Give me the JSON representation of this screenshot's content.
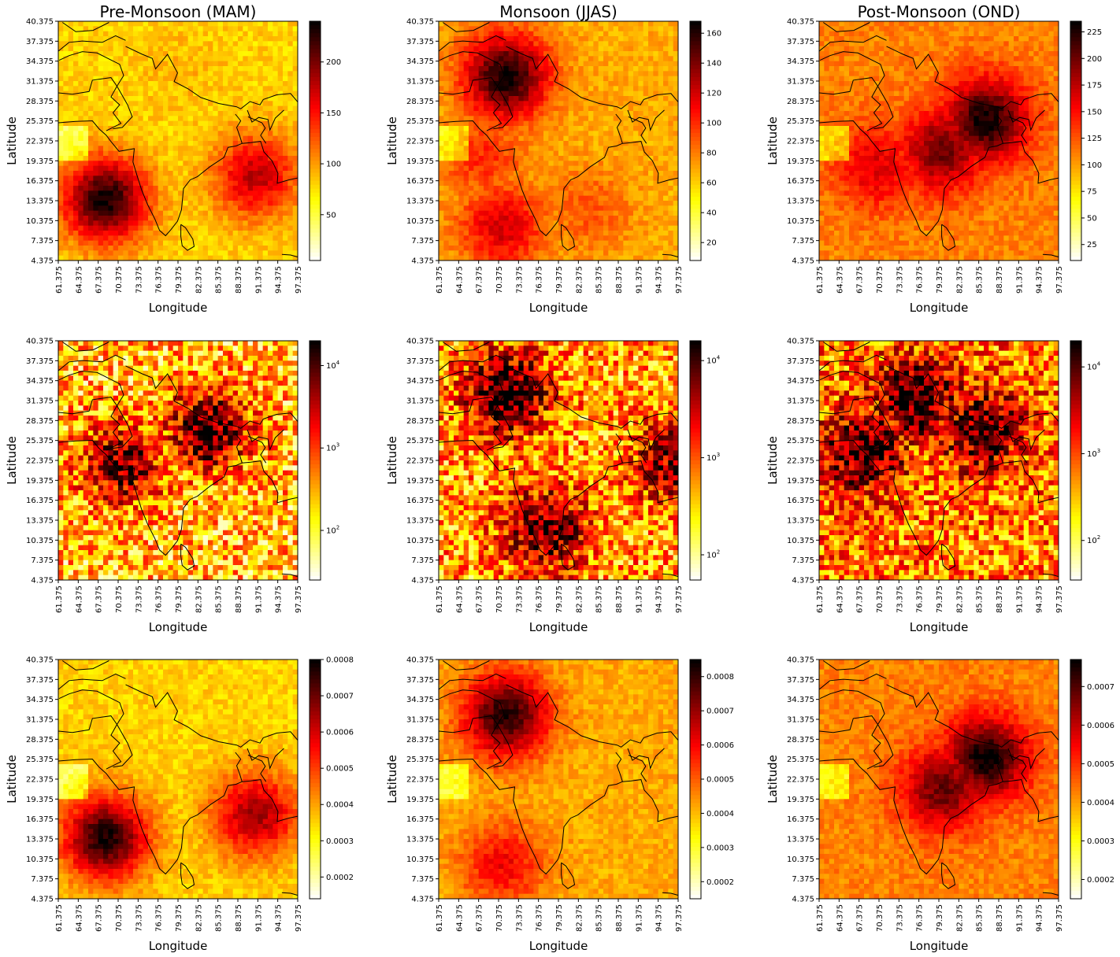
{
  "figure": {
    "column_titles": [
      "Pre-Monsoon (MAM)",
      "Monsoon (JJAS)",
      "Post-Monsoon (OND)"
    ],
    "xlabel": "Longitude",
    "ylabel": "Latitude",
    "x_ticks": [
      "61.375",
      "64.375",
      "67.375",
      "70.375",
      "73.375",
      "76.375",
      "79.375",
      "82.375",
      "85.375",
      "88.375",
      "91.375",
      "94.375",
      "97.375"
    ],
    "y_ticks": [
      "4.375",
      "7.375",
      "10.375",
      "13.375",
      "16.375",
      "19.375",
      "22.375",
      "25.375",
      "28.375",
      "31.375",
      "34.375",
      "37.375",
      "40.375"
    ]
  },
  "chart_data": [
    {
      "type": "heatmap",
      "row": 0,
      "col": 0,
      "title": "Pre-Monsoon (MAM)",
      "xlabel": "Longitude",
      "ylabel": "Latitude",
      "xlim": [
        61.375,
        97.375
      ],
      "ylim": [
        4.375,
        40.375
      ],
      "colormap": "hot_r",
      "colorbar_scale": "linear",
      "vmin": 5,
      "vmax": 240,
      "colorbar_ticks": [
        50,
        100,
        150,
        200
      ],
      "colorbar_tick_labels": [
        "50",
        "100",
        "150",
        "200"
      ],
      "hotspots": [
        {
          "lon": 68.5,
          "lat": 13.5,
          "value": 235
        },
        {
          "lon": 91.0,
          "lat": 17.0,
          "value": 175
        },
        {
          "lon": 80.0,
          "lat": 33.0,
          "value": 90
        }
      ]
    },
    {
      "type": "heatmap",
      "row": 0,
      "col": 1,
      "title": "Monsoon (JJAS)",
      "xlabel": "Longitude",
      "ylabel": "Latitude",
      "xlim": [
        61.375,
        97.375
      ],
      "ylim": [
        4.375,
        40.375
      ],
      "colormap": "hot_r",
      "colorbar_scale": "linear",
      "vmin": 8,
      "vmax": 168,
      "colorbar_ticks": [
        20,
        40,
        60,
        80,
        100,
        120,
        140,
        160
      ],
      "colorbar_tick_labels": [
        "20",
        "40",
        "60",
        "80",
        "100",
        "120",
        "140",
        "160"
      ],
      "hotspots": [
        {
          "lon": 71.5,
          "lat": 32.0,
          "value": 165
        },
        {
          "lon": 71.0,
          "lat": 9.5,
          "value": 120
        },
        {
          "lon": 68.0,
          "lat": 20.0,
          "value": 100
        },
        {
          "lon": 84.0,
          "lat": 12.0,
          "value": 90
        }
      ]
    },
    {
      "type": "heatmap",
      "row": 0,
      "col": 2,
      "title": "Post-Monsoon (OND)",
      "xlabel": "Longitude",
      "ylabel": "Latitude",
      "xlim": [
        61.375,
        97.375
      ],
      "ylim": [
        4.375,
        40.375
      ],
      "colormap": "hot_r",
      "colorbar_scale": "linear",
      "vmin": 10,
      "vmax": 235,
      "colorbar_ticks": [
        25,
        50,
        75,
        100,
        125,
        150,
        175,
        200,
        225
      ],
      "colorbar_tick_labels": [
        "25",
        "50",
        "75",
        "100",
        "125",
        "150",
        "175",
        "200",
        "225"
      ],
      "hotspots": [
        {
          "lon": 86.5,
          "lat": 25.5,
          "value": 230
        },
        {
          "lon": 80.0,
          "lat": 21.0,
          "value": 200
        },
        {
          "lon": 70.0,
          "lat": 18.5,
          "value": 165
        }
      ]
    },
    {
      "type": "heatmap",
      "row": 1,
      "col": 0,
      "title": "",
      "xlabel": "Longitude",
      "ylabel": "Latitude",
      "xlim": [
        61.375,
        97.375
      ],
      "ylim": [
        4.375,
        40.375
      ],
      "colormap": "hot_r",
      "colorbar_scale": "log",
      "vmin": 25,
      "vmax": 20000,
      "colorbar_ticks": [
        100,
        1000,
        10000
      ],
      "colorbar_tick_labels": [
        "10^2",
        "10^3",
        "10^4"
      ],
      "hotspots": [
        {
          "lon": 84.0,
          "lat": 27.0,
          "value": 12000
        },
        {
          "lon": 71.0,
          "lat": 22.0,
          "value": 8000
        }
      ]
    },
    {
      "type": "heatmap",
      "row": 1,
      "col": 1,
      "title": "",
      "xlabel": "Longitude",
      "ylabel": "Latitude",
      "xlim": [
        61.375,
        97.375
      ],
      "ylim": [
        4.375,
        40.375
      ],
      "colormap": "hot_r",
      "colorbar_scale": "log",
      "vmin": 55,
      "vmax": 16000,
      "colorbar_ticks": [
        100,
        1000,
        10000
      ],
      "colorbar_tick_labels": [
        "10^2",
        "10^3",
        "10^4"
      ],
      "hotspots": [
        {
          "lon": 71.5,
          "lat": 32.5,
          "value": 15000
        },
        {
          "lon": 77.5,
          "lat": 12.0,
          "value": 9000
        },
        {
          "lon": 97.0,
          "lat": 22.0,
          "value": 6000
        }
      ]
    },
    {
      "type": "heatmap",
      "row": 1,
      "col": 2,
      "title": "",
      "xlabel": "Longitude",
      "ylabel": "Latitude",
      "xlim": [
        61.375,
        97.375
      ],
      "ylim": [
        4.375,
        40.375
      ],
      "colormap": "hot_r",
      "colorbar_scale": "log",
      "vmin": 35,
      "vmax": 20000,
      "colorbar_ticks": [
        100,
        1000,
        10000
      ],
      "colorbar_tick_labels": [
        "10^2",
        "10^3",
        "10^4"
      ],
      "hotspots": [
        {
          "lon": 76.0,
          "lat": 31.5,
          "value": 15000
        },
        {
          "lon": 68.0,
          "lat": 23.5,
          "value": 14000
        },
        {
          "lon": 86.0,
          "lat": 27.0,
          "value": 12000
        }
      ]
    },
    {
      "type": "heatmap",
      "row": 2,
      "col": 0,
      "title": "",
      "xlabel": "Longitude",
      "ylabel": "Latitude",
      "xlim": [
        61.375,
        97.375
      ],
      "ylim": [
        4.375,
        40.375
      ],
      "colormap": "hot_r",
      "colorbar_scale": "linear",
      "vmin": 0.00014,
      "vmax": 0.0008,
      "colorbar_ticks": [
        0.0002,
        0.0003,
        0.0004,
        0.0005,
        0.0006,
        0.0007,
        0.0008
      ],
      "colorbar_tick_labels": [
        "0.0002",
        "0.0003",
        "0.0004",
        "0.0005",
        "0.0006",
        "0.0007",
        "0.0008"
      ],
      "hotspots": [
        {
          "lon": 68.5,
          "lat": 13.5,
          "value": 0.00078
        },
        {
          "lon": 91.0,
          "lat": 17.0,
          "value": 0.00065
        }
      ]
    },
    {
      "type": "heatmap",
      "row": 2,
      "col": 1,
      "title": "",
      "xlabel": "Longitude",
      "ylabel": "Latitude",
      "xlim": [
        61.375,
        97.375
      ],
      "ylim": [
        4.375,
        40.375
      ],
      "colormap": "hot_r",
      "colorbar_scale": "linear",
      "vmin": 0.00015,
      "vmax": 0.00085,
      "colorbar_ticks": [
        0.0002,
        0.0003,
        0.0004,
        0.0005,
        0.0006,
        0.0007,
        0.0008
      ],
      "colorbar_tick_labels": [
        "0.0002",
        "0.0003",
        "0.0004",
        "0.0005",
        "0.0006",
        "0.0007",
        "0.0008"
      ],
      "hotspots": [
        {
          "lon": 71.5,
          "lat": 32.0,
          "value": 0.00082
        },
        {
          "lon": 71.0,
          "lat": 9.5,
          "value": 0.0006
        }
      ]
    },
    {
      "type": "heatmap",
      "row": 2,
      "col": 2,
      "title": "",
      "xlabel": "Longitude",
      "ylabel": "Latitude",
      "xlim": [
        61.375,
        97.375
      ],
      "ylim": [
        4.375,
        40.375
      ],
      "colormap": "hot_r",
      "colorbar_scale": "linear",
      "vmin": 0.00015,
      "vmax": 0.00077,
      "colorbar_ticks": [
        0.0002,
        0.0003,
        0.0004,
        0.0005,
        0.0006,
        0.0007
      ],
      "colorbar_tick_labels": [
        "0.0002",
        "0.0003",
        "0.0004",
        "0.0005",
        "0.0006",
        "0.0007"
      ],
      "hotspots": [
        {
          "lon": 86.5,
          "lat": 25.5,
          "value": 0.00076
        },
        {
          "lon": 80.0,
          "lat": 21.0,
          "value": 0.00068
        }
      ]
    }
  ]
}
